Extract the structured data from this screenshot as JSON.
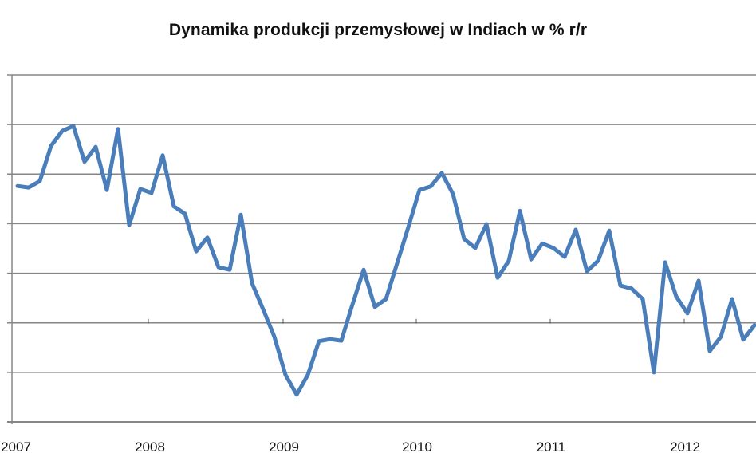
{
  "chart": {
    "title": "Dynamika produkcji przemysłowej w Indiach w % r/r",
    "line_color": "#4A7EBB",
    "grid_color": "#868686",
    "axis_color": "#868686"
  },
  "chart_data": {
    "type": "line",
    "title": "Dynamika produkcji przemysłowej w Indiach w % r/r",
    "xlabel": "",
    "ylabel": "",
    "x_tick_labels": [
      "2007",
      "2008",
      "2009",
      "2010",
      "2011",
      "2012"
    ],
    "y_tick_labels_visible": false,
    "y_units_note": "Y tick labels are cropped out of the image; values expressed in gridline units (0 = x-axis, 7 = top gridline).",
    "ylim": [
      0,
      7
    ],
    "grid": true,
    "legend": null,
    "series": [
      {
        "name": "Dynamika produkcji przemysłowej (% r/r)",
        "frequency": "monthly",
        "start": "2007-01",
        "x": [
          "2007-01",
          "2007-02",
          "2007-03",
          "2007-04",
          "2007-05",
          "2007-06",
          "2007-07",
          "2007-08",
          "2007-09",
          "2007-10",
          "2007-11",
          "2007-12",
          "2008-01",
          "2008-02",
          "2008-03",
          "2008-04",
          "2008-05",
          "2008-06",
          "2008-07",
          "2008-08",
          "2008-09",
          "2008-10",
          "2008-11",
          "2008-12",
          "2009-01",
          "2009-02",
          "2009-03",
          "2009-04",
          "2009-05",
          "2009-06",
          "2009-07",
          "2009-08",
          "2009-09",
          "2009-10",
          "2009-11",
          "2009-12",
          "2010-01",
          "2010-02",
          "2010-03",
          "2010-04",
          "2010-05",
          "2010-06",
          "2010-07",
          "2010-08",
          "2010-09",
          "2010-10",
          "2010-11",
          "2010-12",
          "2011-01",
          "2011-02",
          "2011-03",
          "2011-04",
          "2011-05",
          "2011-06",
          "2011-07",
          "2011-08",
          "2011-09",
          "2011-10",
          "2011-11",
          "2011-12",
          "2012-01",
          "2012-02",
          "2012-03",
          "2012-04",
          "2012-05",
          "2012-06",
          "2012-07"
        ],
        "values": [
          4.76,
          4.73,
          4.86,
          5.57,
          5.87,
          5.97,
          5.25,
          5.55,
          4.68,
          5.91,
          3.97,
          4.7,
          4.62,
          5.38,
          4.35,
          4.2,
          3.44,
          3.72,
          3.12,
          3.07,
          4.18,
          2.8,
          2.27,
          1.72,
          0.95,
          0.55,
          0.95,
          1.63,
          1.67,
          1.64,
          2.37,
          3.07,
          2.32,
          2.48,
          3.2,
          3.93,
          4.68,
          4.75,
          5.02,
          4.6,
          3.69,
          3.51,
          3.99,
          2.91,
          3.25,
          4.26,
          3.28,
          3.6,
          3.51,
          3.33,
          3.88,
          3.04,
          3.25,
          3.86,
          2.75,
          2.69,
          2.48,
          1.0,
          3.22,
          2.53,
          2.19,
          2.85,
          1.43,
          1.72,
          2.48,
          1.66,
          1.95
        ]
      }
    ]
  }
}
